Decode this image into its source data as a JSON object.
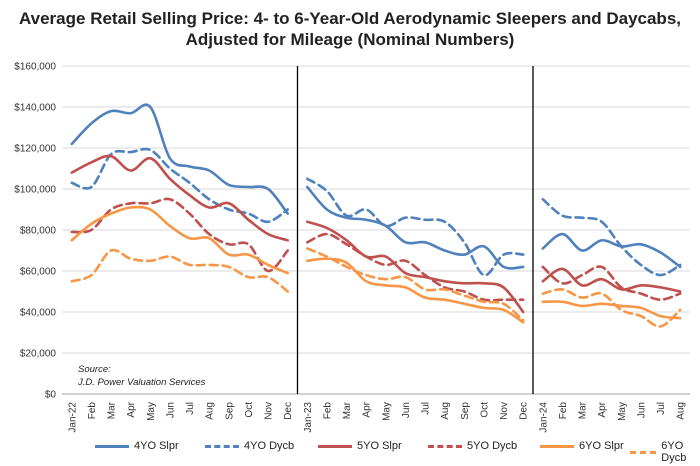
{
  "chart_data": {
    "type": "line",
    "title_line1": "Average Retail Selling Price: 4- to 6-Year-Old Aerodynamic Sleepers and Daycabs,",
    "title_line2": "Adjusted for Mileage (Nominal Numbers)",
    "ylim": [
      0,
      160000
    ],
    "yticks": [
      "$0",
      "$20,000",
      "$40,000",
      "$60,000",
      "$80,000",
      "$100,000",
      "$120,000",
      "$140,000",
      "$160,000"
    ],
    "source_line1": "Source:",
    "source_line2": "J.D. Power Valuation Services",
    "x": [
      "Jan-22",
      "Feb",
      "Mar",
      "Apr",
      "May",
      "Jun",
      "Jul",
      "Aug",
      "Sep",
      "Oct",
      "Nov",
      "Dec",
      "Jan-23",
      "Feb",
      "Mar",
      "Apr",
      "May",
      "Jun",
      "Jul",
      "Aug",
      "Sep",
      "Oct",
      "Nov",
      "Dec",
      "Jan-24",
      "Feb",
      "Mar",
      "Apr",
      "May",
      "Jun",
      "Jul",
      "Aug"
    ],
    "segments": [
      12,
      12,
      8
    ],
    "series": [
      {
        "name": "4YO Slpr",
        "color": "#4f81bd",
        "dash": false,
        "values": [
          122000,
          132000,
          138000,
          137000,
          140000,
          115000,
          111000,
          109000,
          102000,
          101000,
          100000,
          88000,
          101000,
          90000,
          86000,
          85000,
          82000,
          74000,
          74000,
          70000,
          68000,
          72000,
          62000,
          62000,
          71000,
          78000,
          70000,
          75000,
          72000,
          73000,
          69000,
          62000
        ]
      },
      {
        "name": "4YO Dycb",
        "color": "#4f81bd",
        "dash": true,
        "values": [
          103000,
          101000,
          117000,
          118000,
          119000,
          110000,
          103000,
          95000,
          90000,
          88000,
          84000,
          90000,
          105000,
          99000,
          87000,
          90000,
          82000,
          86000,
          85000,
          84000,
          74000,
          58000,
          68000,
          68000,
          95000,
          87000,
          86000,
          84000,
          72000,
          63000,
          58000,
          63000
        ]
      },
      {
        "name": "5YO Slpr",
        "color": "#c0504d",
        "dash": false,
        "values": [
          108000,
          113000,
          116000,
          109000,
          115000,
          105000,
          97000,
          91000,
          93000,
          85000,
          78000,
          75000,
          84000,
          81000,
          75000,
          67000,
          67000,
          59000,
          57000,
          55000,
          54000,
          54000,
          52000,
          40000,
          55000,
          61000,
          53000,
          56000,
          51000,
          53000,
          52000,
          50000
        ]
      },
      {
        "name": "5YO Dycb",
        "color": "#c0504d",
        "dash": true,
        "values": [
          79000,
          80000,
          90000,
          93000,
          93000,
          95000,
          88000,
          78000,
          73000,
          73000,
          60000,
          70000,
          74000,
          78000,
          73000,
          67000,
          63000,
          65000,
          58000,
          52000,
          50000,
          46000,
          46000,
          46000,
          62000,
          54000,
          58000,
          62000,
          52000,
          49000,
          46000,
          49000
        ]
      },
      {
        "name": "6YO Slpr",
        "color": "#f79646",
        "dash": false,
        "values": [
          75000,
          83000,
          88000,
          91000,
          90000,
          82000,
          76000,
          76000,
          68000,
          68000,
          63000,
          59000,
          65000,
          66000,
          64000,
          55000,
          53000,
          52000,
          47000,
          46000,
          44000,
          42000,
          41000,
          35000,
          45000,
          45000,
          43000,
          44000,
          43000,
          42000,
          38000,
          37000
        ]
      },
      {
        "name": "6YO Dycb",
        "color": "#f79646",
        "dash": true,
        "values": [
          55000,
          58000,
          70000,
          66000,
          65000,
          67000,
          63000,
          63000,
          62000,
          57000,
          57000,
          50000,
          71000,
          67000,
          62000,
          58000,
          56000,
          57000,
          51000,
          51000,
          48000,
          45000,
          44000,
          36000,
          49000,
          51000,
          47000,
          49000,
          41000,
          38000,
          33000,
          41000
        ]
      }
    ]
  }
}
